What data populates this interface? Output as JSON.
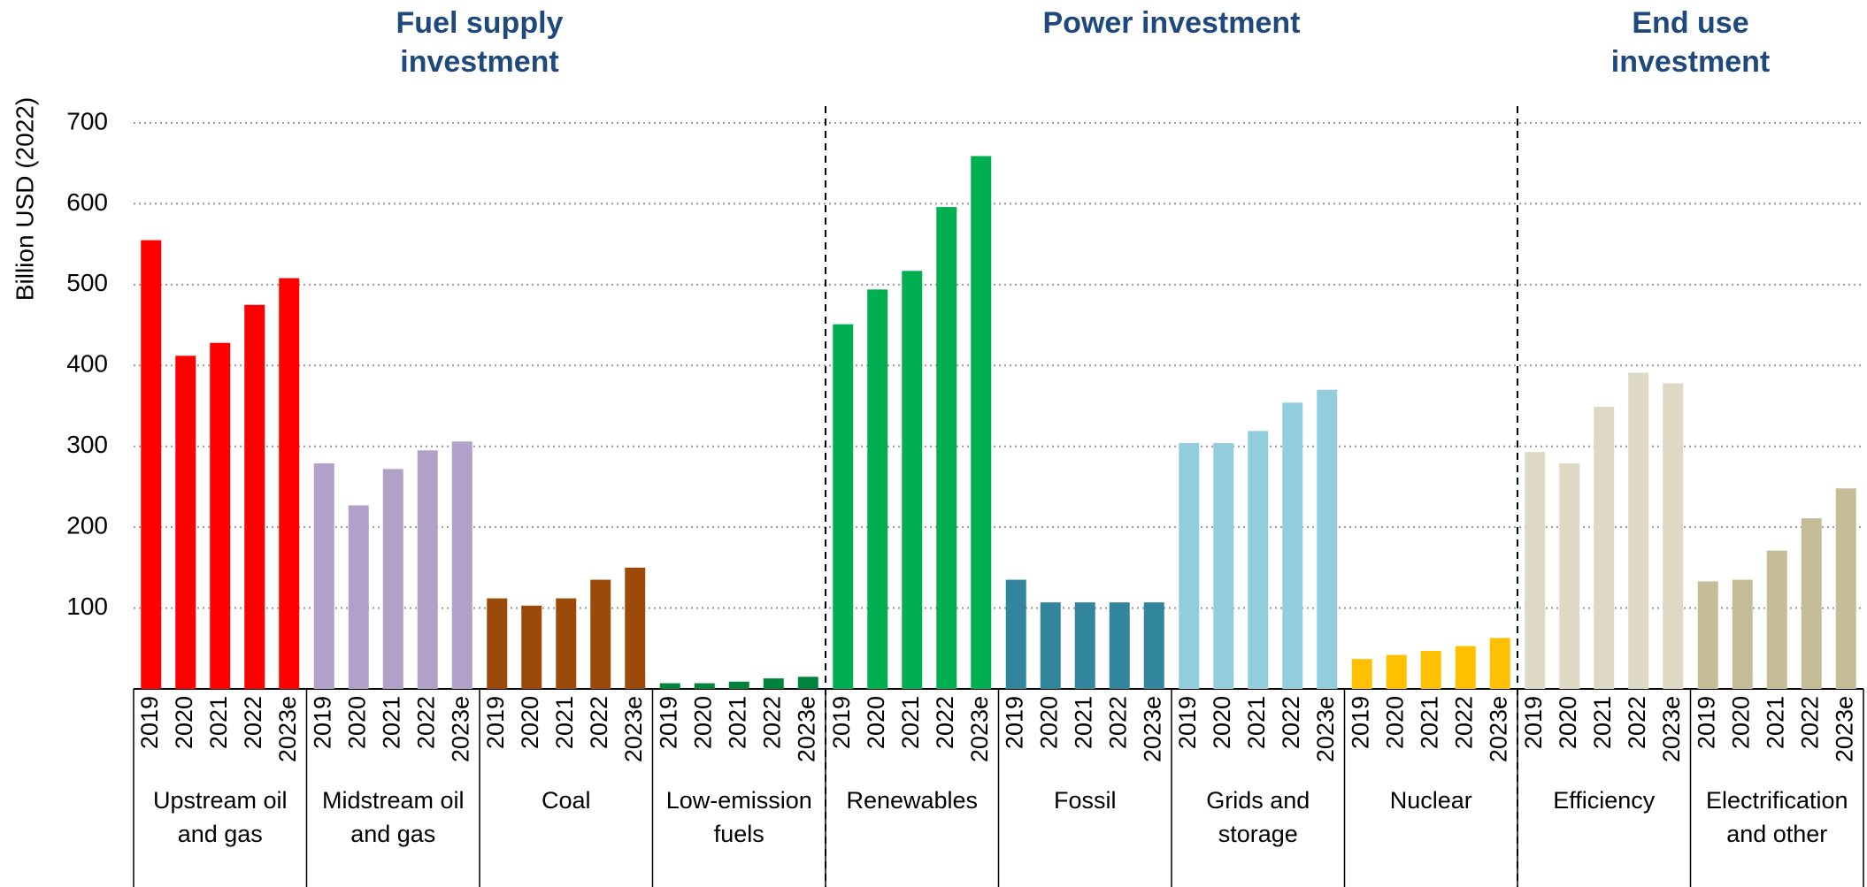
{
  "chart_data": {
    "type": "bar",
    "y_axis_label": "Billion USD (2022)",
    "categories": [
      "2019",
      "2020",
      "2021",
      "2022",
      "2023e"
    ],
    "ylim": [
      0,
      700
    ],
    "yticks": [
      100,
      200,
      300,
      400,
      500,
      600,
      700
    ],
    "grid": true,
    "sections": [
      {
        "title": "Fuel supply investment",
        "series": [
          {
            "name": "Upstream oil and gas",
            "color": "#ff0000",
            "values": [
              555,
              412,
              428,
              475,
              508
            ]
          },
          {
            "name": "Midstream oil and gas",
            "color": "#b1a0c7",
            "values": [
              279,
              227,
              272,
              295,
              306
            ]
          },
          {
            "name": "Coal",
            "color": "#9c4a0a",
            "values": [
              112,
              103,
              112,
              135,
              150
            ]
          },
          {
            "name": "Low-emission fuels",
            "color": "#00843d",
            "values": [
              7,
              7,
              9,
              13,
              15
            ]
          }
        ]
      },
      {
        "title": "Power investment",
        "series": [
          {
            "name": "Renewables",
            "color": "#00b050",
            "values": [
              451,
              494,
              517,
              596,
              659
            ]
          },
          {
            "name": "Fossil",
            "color": "#31859c",
            "values": [
              135,
              107,
              107,
              107,
              107
            ]
          },
          {
            "name": "Grids and storage",
            "color": "#92cddc",
            "values": [
              304,
              304,
              319,
              354,
              370
            ]
          },
          {
            "name": "Nuclear",
            "color": "#ffc000",
            "values": [
              37,
              42,
              47,
              53,
              63
            ]
          }
        ]
      },
      {
        "title": "End use investment",
        "series": [
          {
            "name": "Efficiency",
            "color": "#ddd9c4",
            "values": [
              293,
              279,
              349,
              391,
              378
            ]
          },
          {
            "name": "Electrification and other",
            "color": "#c4bd97",
            "values": [
              133,
              135,
              171,
              211,
              248
            ]
          }
        ]
      }
    ]
  }
}
